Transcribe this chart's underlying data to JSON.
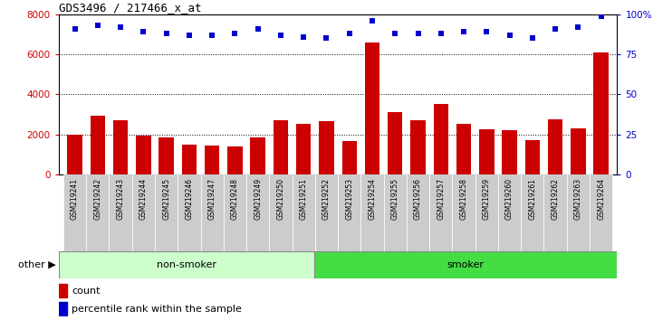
{
  "title": "GDS3496 / 217466_x_at",
  "categories": [
    "GSM219241",
    "GSM219242",
    "GSM219243",
    "GSM219244",
    "GSM219245",
    "GSM219246",
    "GSM219247",
    "GSM219248",
    "GSM219249",
    "GSM219250",
    "GSM219251",
    "GSM219252",
    "GSM219253",
    "GSM219254",
    "GSM219255",
    "GSM219256",
    "GSM219257",
    "GSM219258",
    "GSM219259",
    "GSM219260",
    "GSM219261",
    "GSM219262",
    "GSM219263",
    "GSM219264"
  ],
  "bar_values": [
    2000,
    2950,
    2700,
    1950,
    1850,
    1500,
    1450,
    1400,
    1850,
    2700,
    2550,
    2650,
    1650,
    6600,
    3100,
    2700,
    3500,
    2550,
    2250,
    2200,
    1700,
    2750,
    2300,
    6100
  ],
  "percentile_values": [
    91,
    93,
    92,
    89,
    88,
    87,
    87,
    88,
    91,
    87,
    86,
    85,
    88,
    96,
    88,
    88,
    88,
    89,
    89,
    87,
    85,
    91,
    92,
    99
  ],
  "bar_color": "#cc0000",
  "dot_color": "#0000cc",
  "ylim_left": [
    0,
    8000
  ],
  "ylim_right": [
    0,
    100
  ],
  "yticks_left": [
    0,
    2000,
    4000,
    6000,
    8000
  ],
  "yticks_right": [
    0,
    25,
    50,
    75,
    100
  ],
  "right_ytick_labels": [
    "0",
    "25",
    "50",
    "75",
    "100%"
  ],
  "group1_label": "non-smoker",
  "group1_count": 11,
  "group2_label": "smoker",
  "group2_count": 13,
  "group1_color": "#ccffcc",
  "group2_color": "#44dd44",
  "other_label": "other",
  "legend_count_label": "count",
  "legend_pct_label": "percentile rank within the sample",
  "tick_bg_color": "#cccccc",
  "dotted_gridlines": [
    2000,
    4000,
    6000
  ],
  "bar_width": 0.65
}
